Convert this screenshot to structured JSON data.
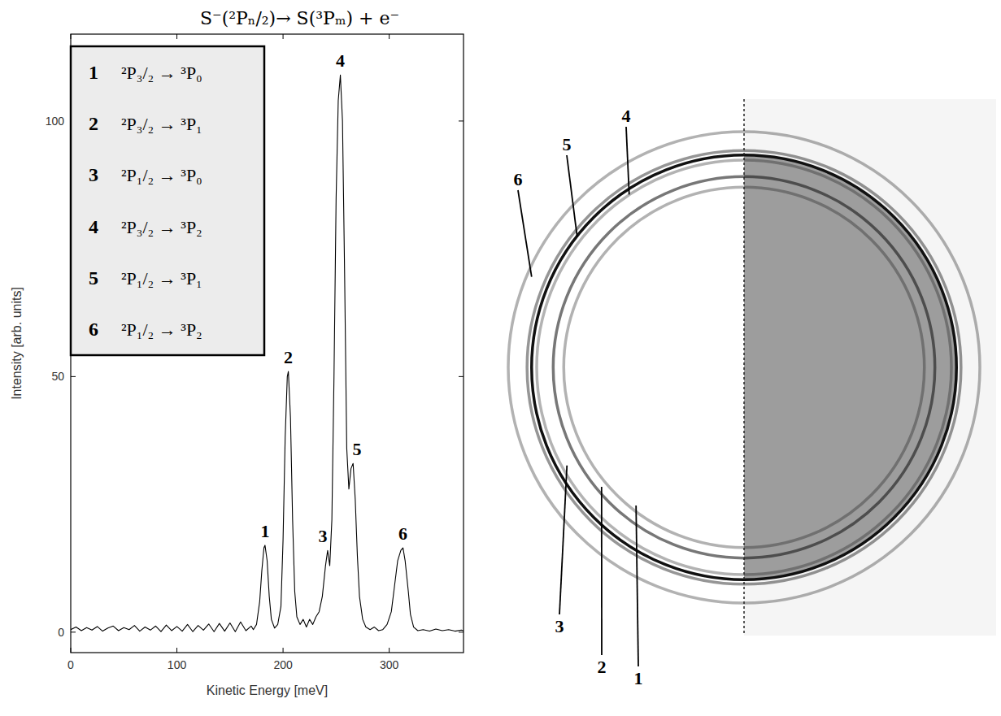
{
  "chart_data": {
    "type": "line",
    "title": "S⁻(²Pₙ/₂)→ S(³Pₘ) + e⁻",
    "x_label": "Kinetic Energy [meV]",
    "y_label": "Intensity [arb. units]",
    "xlim": [
      0,
      370
    ],
    "ylim": [
      -4,
      117
    ],
    "xticks": [
      0,
      100,
      200,
      300
    ],
    "yticks": [
      0,
      50,
      100
    ],
    "color": "#000000",
    "x": [
      0,
      5,
      10,
      15,
      20,
      25,
      30,
      35,
      40,
      45,
      50,
      55,
      60,
      65,
      70,
      75,
      80,
      85,
      90,
      95,
      100,
      105,
      110,
      115,
      120,
      125,
      130,
      135,
      140,
      145,
      150,
      155,
      160,
      165,
      170,
      172,
      175,
      178,
      180,
      182,
      183,
      185,
      187,
      189,
      192,
      195,
      198,
      200,
      202,
      204,
      205,
      207,
      209,
      211,
      213,
      216,
      219,
      222,
      225,
      228,
      231,
      234,
      237,
      240,
      242,
      244,
      246,
      248,
      250,
      252,
      254,
      256,
      258,
      260,
      262,
      264,
      266,
      268,
      270,
      272,
      275,
      278,
      282,
      286,
      290,
      294,
      298,
      302,
      305,
      308,
      311,
      313,
      315,
      318,
      320,
      323,
      327,
      332,
      338,
      344,
      350,
      356,
      362,
      368,
      370
    ],
    "values": [
      0.5,
      1.0,
      0.3,
      0.9,
      0.4,
      1.1,
      0.2,
      0.8,
      1.2,
      0.3,
      0.9,
      0.5,
      1.3,
      0.2,
      1.0,
      0.4,
      1.2,
      0.1,
      1.4,
      0.3,
      1.1,
      0.2,
      1.5,
      0.1,
      1.3,
      0.4,
      1.6,
      0.1,
      1.7,
      0.2,
      1.8,
      0.1,
      2.0,
      0.3,
      1.2,
      0.5,
      1.5,
      6,
      12,
      16.5,
      17,
      14,
      7,
      2.5,
      0.8,
      1.5,
      5,
      18,
      38,
      50,
      51,
      42,
      22,
      8,
      3,
      1.5,
      2.5,
      1,
      2.5,
      1.5,
      3,
      4,
      7,
      13,
      16,
      13,
      22,
      50,
      85,
      104,
      109,
      100,
      70,
      36,
      28,
      32,
      33,
      26,
      15,
      7,
      2.5,
      1,
      0.5,
      1,
      0.3,
      0.5,
      1.5,
      4,
      9,
      14,
      16,
      16.5,
      14,
      8,
      3.5,
      1,
      0.3,
      0.5,
      0.2,
      0.6,
      0.3,
      0.5,
      0.2,
      0.4,
      0.3
    ],
    "peaks": [
      {
        "label": "1",
        "transition": "²P₃/₂ → ³P₀",
        "energy": 183,
        "intensity": 17
      },
      {
        "label": "2",
        "transition": "²P₃/₂ → ³P₁",
        "energy": 205,
        "intensity": 51
      },
      {
        "label": "3",
        "transition": "²P₁/₂ → ³P₀",
        "energy": 242,
        "intensity": 16
      },
      {
        "label": "4",
        "transition": "²P₃/₂ → ³P₂",
        "energy": 254,
        "intensity": 109
      },
      {
        "label": "5",
        "transition": "²P₁/₂ → ³P₁",
        "energy": 265,
        "intensity": 33
      },
      {
        "label": "6",
        "transition": "²P₁/₂ → ³P₂",
        "energy": 313,
        "intensity": 16.5
      }
    ]
  }
}
